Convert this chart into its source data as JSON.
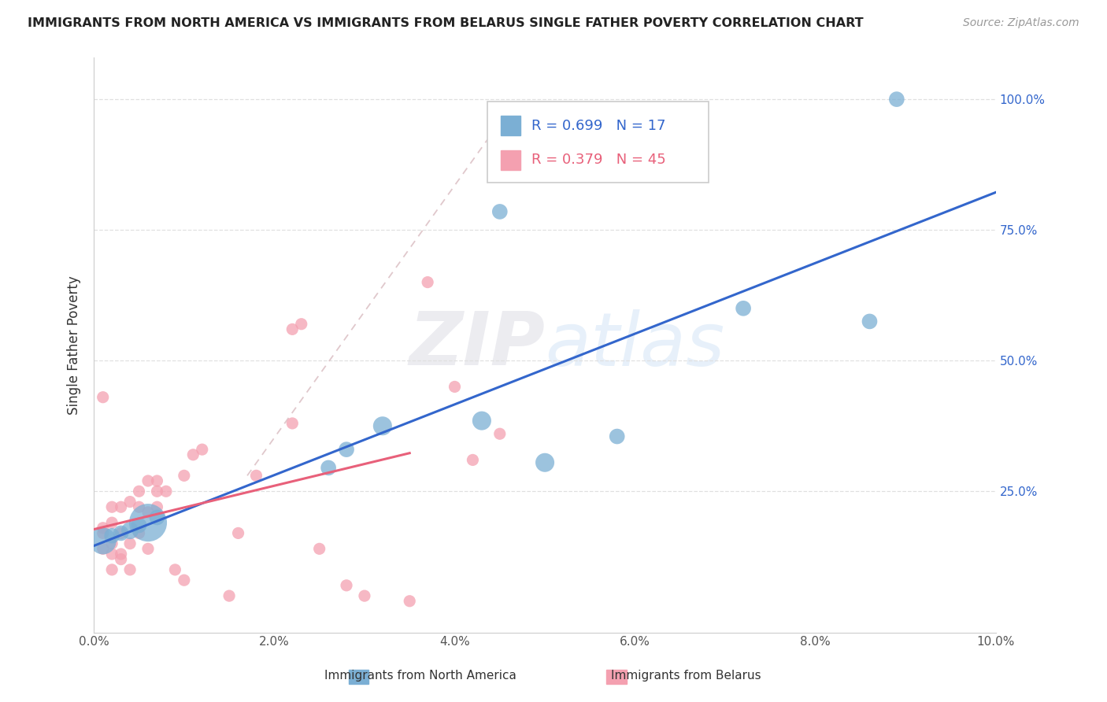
{
  "title": "IMMIGRANTS FROM NORTH AMERICA VS IMMIGRANTS FROM BELARUS SINGLE FATHER POVERTY CORRELATION CHART",
  "source": "Source: ZipAtlas.com",
  "xlabel_blue": "Immigrants from North America",
  "xlabel_pink": "Immigrants from Belarus",
  "ylabel": "Single Father Poverty",
  "r_blue": 0.699,
  "n_blue": 17,
  "r_pink": 0.379,
  "n_pink": 45,
  "xlim": [
    0.0,
    0.1
  ],
  "ylim": [
    -0.02,
    1.08
  ],
  "xticks": [
    0.0,
    0.02,
    0.04,
    0.06,
    0.08,
    0.1
  ],
  "xtick_labels": [
    "0.0%",
    "2.0%",
    "4.0%",
    "6.0%",
    "8.0%",
    "10.0%"
  ],
  "yticks": [
    0.25,
    0.5,
    0.75,
    1.0
  ],
  "ytick_labels": [
    "25.0%",
    "50.0%",
    "75.0%",
    "100.0%"
  ],
  "color_blue": "#7BAFD4",
  "color_pink": "#F4A0B0",
  "line_blue": "#3366CC",
  "line_pink": "#E8607A",
  "line_diag_color": "#E0C8CC",
  "watermark_zip": "ZIP",
  "watermark_atlas": "atlas",
  "background": "#FFFFFF",
  "grid_color": "#E0E0E0",
  "blue_x": [
    0.001,
    0.002,
    0.003,
    0.004,
    0.005,
    0.006,
    0.007,
    0.026,
    0.028,
    0.032,
    0.043,
    0.045,
    0.05,
    0.058,
    0.072,
    0.086,
    0.089
  ],
  "blue_y": [
    0.155,
    0.165,
    0.17,
    0.175,
    0.185,
    0.19,
    0.2,
    0.295,
    0.33,
    0.375,
    0.385,
    0.785,
    0.305,
    0.355,
    0.6,
    0.575,
    1.0
  ],
  "blue_sizes": [
    600,
    200,
    200,
    250,
    200,
    1200,
    200,
    200,
    200,
    300,
    300,
    200,
    300,
    200,
    200,
    200,
    200
  ],
  "pink_x": [
    0.001,
    0.001,
    0.001,
    0.001,
    0.002,
    0.002,
    0.002,
    0.002,
    0.003,
    0.003,
    0.003,
    0.004,
    0.004,
    0.004,
    0.005,
    0.005,
    0.005,
    0.006,
    0.006,
    0.006,
    0.007,
    0.007,
    0.007,
    0.008,
    0.009,
    0.01,
    0.01,
    0.011,
    0.012,
    0.015,
    0.016,
    0.018,
    0.022,
    0.022,
    0.023,
    0.025,
    0.028,
    0.03,
    0.035,
    0.037,
    0.04,
    0.042,
    0.045,
    0.002,
    0.003
  ],
  "pink_y": [
    0.14,
    0.17,
    0.18,
    0.43,
    0.13,
    0.15,
    0.19,
    0.22,
    0.13,
    0.17,
    0.22,
    0.1,
    0.15,
    0.23,
    0.17,
    0.22,
    0.25,
    0.14,
    0.21,
    0.27,
    0.22,
    0.25,
    0.27,
    0.25,
    0.1,
    0.08,
    0.28,
    0.32,
    0.33,
    0.05,
    0.17,
    0.28,
    0.38,
    0.56,
    0.57,
    0.14,
    0.07,
    0.05,
    0.04,
    0.65,
    0.45,
    0.31,
    0.36,
    0.1,
    0.12
  ],
  "pink_sizes": [
    120,
    120,
    120,
    120,
    120,
    120,
    120,
    120,
    120,
    120,
    120,
    120,
    120,
    120,
    120,
    120,
    120,
    120,
    120,
    120,
    120,
    120,
    120,
    120,
    120,
    120,
    120,
    120,
    120,
    120,
    120,
    120,
    120,
    120,
    120,
    120,
    120,
    120,
    120,
    120,
    120,
    120,
    120,
    120,
    120
  ],
  "legend_r_blue": "R = 0.699",
  "legend_n_blue": "N = 17",
  "legend_r_pink": "R = 0.379",
  "legend_n_pink": "N = 45"
}
